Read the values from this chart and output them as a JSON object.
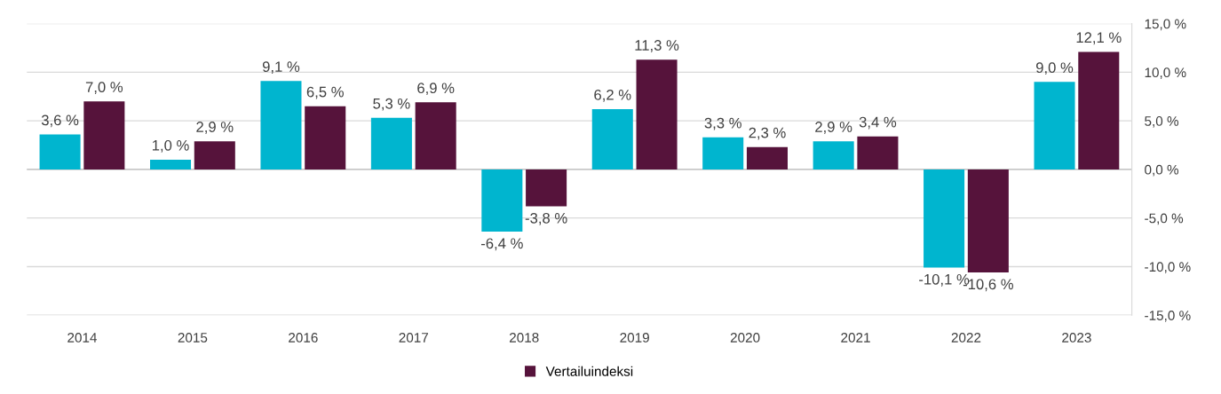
{
  "chart_data": {
    "type": "bar",
    "categories": [
      "2014",
      "2015",
      "2016",
      "2017",
      "2018",
      "2019",
      "2020",
      "2021",
      "2022",
      "2023"
    ],
    "series": [
      {
        "color": "#00b5cf",
        "values": [
          3.6,
          1.0,
          9.1,
          5.3,
          -6.4,
          6.2,
          3.3,
          2.9,
          -10.1,
          9.0
        ],
        "value_labels": [
          "3,6 %",
          "1,0 %",
          "9,1 %",
          "5,3 %",
          "-6,4 %",
          "6,2 %",
          "3,3 %",
          "2,9 %",
          "-10,1 %",
          "9,0 %"
        ]
      },
      {
        "name": "Vertailuindeksi",
        "color": "#56133b",
        "values": [
          7.0,
          2.9,
          6.5,
          6.9,
          -3.8,
          11.3,
          2.3,
          3.4,
          -10.6,
          12.1
        ],
        "value_labels": [
          "7,0 %",
          "2,9 %",
          "6,5 %",
          "6,9 %",
          "-3,8 %",
          "11,3 %",
          "2,3 %",
          "3,4 %",
          "-10,6 %",
          "12,1 %"
        ]
      }
    ],
    "ylim": [
      -15,
      15
    ],
    "yticks": [
      {
        "value": -15,
        "label": "-15,0 %"
      },
      {
        "value": -10,
        "label": "-10,0 %"
      },
      {
        "value": -5,
        "label": "-5,0 %"
      },
      {
        "value": 0,
        "label": "0,0 %"
      },
      {
        "value": 5,
        "label": "5,0 %"
      },
      {
        "value": 10,
        "label": "10,0 %"
      },
      {
        "value": 15,
        "label": "15,0 %"
      }
    ],
    "grid": "y",
    "legend": "bottom"
  }
}
